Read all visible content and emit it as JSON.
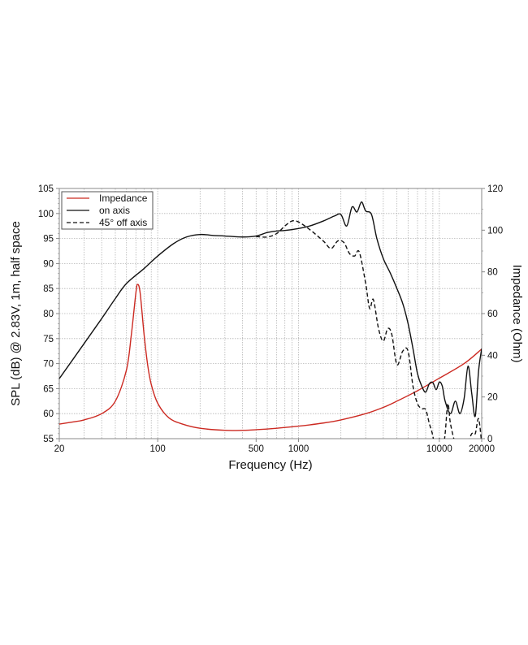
{
  "chart_data": {
    "type": "line",
    "title": "",
    "xlabel": "Frequency (Hz)",
    "ylabel": "SPL (dB) @ 2.83V, 1m, half space",
    "y2label": "Impedance (Ohm)",
    "xscale": "log",
    "xlim": [
      20,
      20000
    ],
    "ylim": [
      55,
      105
    ],
    "y2lim": [
      0,
      120
    ],
    "grid": true,
    "legend_position": "upper left",
    "x_ticks": [
      20,
      100,
      500,
      1000,
      10000,
      20000
    ],
    "x_tick_labels": [
      "20",
      "100",
      "500",
      "1000",
      "10000",
      "20000"
    ],
    "y_ticks": [
      55,
      60,
      65,
      70,
      75,
      80,
      85,
      90,
      95,
      100,
      105
    ],
    "y2_ticks": [
      0,
      20,
      40,
      60,
      80,
      100,
      120
    ],
    "legend": [
      "Impedance",
      "on axis",
      "45° off axis"
    ],
    "series": [
      {
        "name": "Impedance",
        "axis": "right",
        "color": "#cc2a22",
        "style": "solid",
        "x": [
          20,
          25,
          30,
          40,
          50,
          60,
          65,
          70,
          72,
          75,
          80,
          85,
          90,
          100,
          120,
          150,
          200,
          300,
          400,
          500,
          700,
          1000,
          1500,
          2000,
          3000,
          4000,
          5000,
          7000,
          10000,
          15000,
          20000
        ],
        "y": [
          7,
          8,
          9,
          12,
          18,
          33,
          50,
          70,
          74,
          70,
          50,
          35,
          26,
          17,
          10,
          7,
          5,
          4,
          4,
          4.3,
          5,
          6,
          7.5,
          9,
          12,
          15,
          18,
          23,
          29,
          36,
          43
        ]
      },
      {
        "name": "on axis",
        "axis": "left",
        "color": "#111111",
        "style": "solid",
        "x": [
          20,
          30,
          40,
          50,
          60,
          80,
          100,
          130,
          160,
          200,
          250,
          300,
          400,
          500,
          600,
          700,
          800,
          1000,
          1200,
          1500,
          1800,
          2000,
          2200,
          2400,
          2600,
          2800,
          3000,
          3300,
          3600,
          4000,
          4500,
          5000,
          5500,
          6000,
          6500,
          7000,
          7500,
          8000,
          8500,
          9000,
          9500,
          10000,
          10500,
          11000,
          12000,
          13000,
          14000,
          15000,
          16000,
          17000,
          18000,
          19000,
          20000
        ],
        "y": [
          67,
          74,
          79,
          83,
          86,
          89,
          91.5,
          94,
          95.3,
          95.8,
          95.6,
          95.5,
          95.3,
          95.5,
          96.2,
          96.5,
          96.6,
          97,
          97.5,
          98.5,
          99.5,
          99.8,
          97.5,
          101.3,
          100.3,
          102.3,
          100.5,
          99.8,
          95,
          91,
          88,
          85,
          82,
          78,
          73,
          68,
          65.5,
          64.3,
          66,
          66.2,
          64.8,
          66.3,
          65.5,
          62.5,
          60,
          62.5,
          60,
          63,
          69.5,
          64,
          59.5,
          68.5,
          73
        ]
      },
      {
        "name": "45° off axis",
        "axis": "left",
        "color": "#111111",
        "style": "dashed",
        "x": [
          500,
          600,
          700,
          800,
          900,
          1000,
          1200,
          1500,
          1700,
          1900,
          2100,
          2300,
          2500,
          2700,
          3000,
          3200,
          3400,
          3700,
          4000,
          4300,
          4600,
          5000,
          5500,
          6000,
          6500,
          7000,
          7500,
          8000,
          8500,
          9000,
          9500,
          10000,
          10500,
          11000,
          11500,
          12000,
          13000,
          14000,
          15000,
          16000,
          17000,
          18000,
          19000,
          20000
        ],
        "y": [
          95.4,
          95.3,
          96,
          97.5,
          98.5,
          98.3,
          96.8,
          94.5,
          93,
          94.5,
          94.2,
          92,
          91.5,
          92.3,
          86,
          81,
          82.8,
          77,
          74.5,
          77,
          75.8,
          69.8,
          72.5,
          72.5,
          65.5,
          62,
          61,
          60.8,
          58,
          55.5,
          51,
          55,
          52,
          56,
          62,
          58,
          54,
          53,
          52,
          54,
          56,
          56,
          59,
          54
        ]
      }
    ]
  },
  "axes": {
    "xlabel": "Frequency (Hz)",
    "ylabel": "SPL (dB) @ 2.83V, 1m, half space",
    "y2label": "Impedance (Ohm)"
  },
  "legend": {
    "items": [
      {
        "label": "Impedance",
        "color": "#cc2a22",
        "style": "solid"
      },
      {
        "label": "on axis",
        "color": "#111111",
        "style": "solid"
      },
      {
        "label": "45° off axis",
        "color": "#111111",
        "style": "dashed"
      }
    ]
  }
}
